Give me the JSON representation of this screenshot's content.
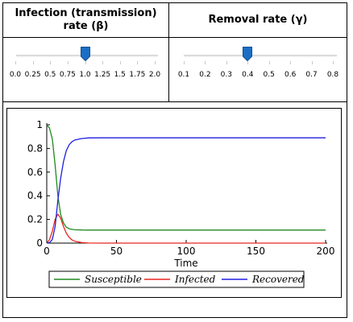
{
  "sliders": [
    {
      "id": "beta",
      "title": "Infection (transmission) rate (β)",
      "min": 0.0,
      "max": 2.0,
      "value": 1.0,
      "tick_labels": [
        "0.0",
        "0.25",
        "0.5",
        "0.75",
        "1.0",
        "1.25",
        "1.5",
        "1.75",
        "2.0"
      ]
    },
    {
      "id": "gamma",
      "title": "Removal rate (γ)",
      "min": 0.1,
      "max": 0.8,
      "value": 0.4,
      "tick_labels": [
        "0.1",
        "0.2",
        "0.3",
        "0.4",
        "0.5",
        "0.6",
        "0.7",
        "0.8"
      ]
    }
  ],
  "colors": {
    "slider_thumb": "#1a6fc4",
    "susceptible": "#1e8a1e",
    "infected": "#e8261e",
    "recovered": "#1f1fe0"
  },
  "chart_data": {
    "type": "line",
    "title": "",
    "xlabel": "Time",
    "ylabel": "",
    "xlim": [
      0,
      200
    ],
    "ylim": [
      0,
      1
    ],
    "x_ticks": [
      "0",
      "50",
      "100",
      "150",
      "200"
    ],
    "y_ticks": [
      "0",
      "0.2",
      "0.4",
      "0.6",
      "0.8",
      "1"
    ],
    "grid": false,
    "legend_position": "bottom",
    "x": [
      0,
      2,
      4,
      6,
      8,
      10,
      12,
      14,
      16,
      18,
      20,
      25,
      30,
      40,
      50,
      75,
      100,
      150,
      200
    ],
    "series": [
      {
        "name": "Susceptible",
        "color_key": "susceptible",
        "values": [
          1.0,
          0.97,
          0.88,
          0.66,
          0.4,
          0.24,
          0.17,
          0.135,
          0.122,
          0.116,
          0.113,
          0.111,
          0.11,
          0.11,
          0.11,
          0.11,
          0.11,
          0.11,
          0.11
        ]
      },
      {
        "name": "Infected",
        "color_key": "infected",
        "values": [
          0.0,
          0.03,
          0.1,
          0.2,
          0.245,
          0.21,
          0.14,
          0.085,
          0.05,
          0.028,
          0.016,
          0.005,
          0.001,
          0.0,
          0.0,
          0.0,
          0.0,
          0.0,
          0.0
        ]
      },
      {
        "name": "Recovered",
        "color_key": "recovered",
        "values": [
          0.0,
          0.005,
          0.03,
          0.14,
          0.36,
          0.55,
          0.69,
          0.78,
          0.83,
          0.856,
          0.871,
          0.884,
          0.889,
          0.89,
          0.89,
          0.89,
          0.89,
          0.89,
          0.89
        ]
      }
    ]
  }
}
